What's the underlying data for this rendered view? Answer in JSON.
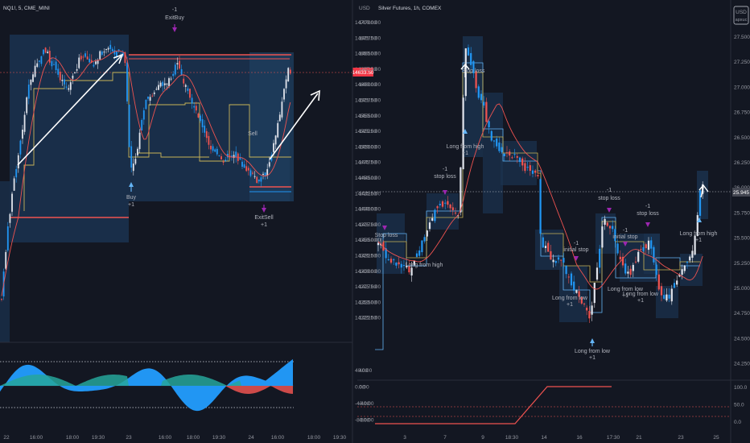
{
  "left_panel": {
    "title": "NQ1!, 5, CME_MINI",
    "price_label": "14633.50",
    "price_label_color": "#f23645",
    "y_ticks": [
      "14700.00",
      "14675.00",
      "14650.00",
      "14625.00",
      "14600.00",
      "14575.00",
      "14550.00",
      "14525.00",
      "14500.00",
      "14475.00",
      "14450.00",
      "14425.00",
      "14400.00",
      "14375.00",
      "14350.00",
      "14325.00",
      "14300.00",
      "14275.00",
      "14250.00",
      "14225.00"
    ],
    "osc_ticks": [
      "40.00",
      "0.00",
      "-40.00",
      "-80.00"
    ],
    "x_ticks": [
      "22",
      "16:00",
      "18:00",
      "19:30",
      "23",
      "16:00",
      "18:00",
      "19:30",
      "24",
      "16:00",
      "18:00",
      "19:30"
    ],
    "annotations": {
      "exit_buy": [
        "-1",
        "ExitBuy"
      ],
      "buy": [
        "Buy",
        "+1"
      ],
      "sell": "Sell",
      "exit_sell": [
        "ExitSell",
        "+1"
      ]
    }
  },
  "right_panel": {
    "title": "Silver Futures, 1h, COMEX",
    "currency": "USD",
    "badge": [
      "USD",
      "apxuc"
    ],
    "price_label": "25.945",
    "y_ticks": [
      "27.500",
      "27.250",
      "27.000",
      "26.750",
      "26.500",
      "26.250",
      "26.000",
      "25.750",
      "25.500",
      "25.250",
      "25.000",
      "24.750",
      "24.500",
      "24.250"
    ],
    "osc_ticks": [
      "100.0",
      "50.0",
      "0.0"
    ],
    "x_ticks": [
      "3",
      "7",
      "9",
      "18:30",
      "14",
      "16",
      "17:30",
      "21",
      "23",
      "25"
    ],
    "annotations": {
      "stop_loss_top": "Stop loss",
      "long_high_1": [
        "Long from high",
        "+1"
      ],
      "stop_1": [
        "-1",
        "stop loss"
      ],
      "stop_2": "Stop loss",
      "long_high_2": "Long from high",
      "initial_stop_1": [
        "-1",
        "initial stop"
      ],
      "long_low_1": [
        "Long from low",
        "+1"
      ],
      "long_low_2": [
        "Long from low",
        "+1"
      ],
      "stop_3": [
        "-1",
        "stop loss"
      ],
      "initial_stop_2": [
        "-1",
        "initial stop"
      ],
      "long_low_3": [
        "Long from low",
        "+1"
      ],
      "stop_4": [
        "-1",
        "stop loss"
      ],
      "long_low_4": [
        "Long from low",
        "+1"
      ],
      "long_high_3": [
        "Long from high",
        "+1"
      ]
    }
  },
  "colors": {
    "background": "#131722",
    "box": "#1c3a58",
    "up": "#e0e3eb",
    "down": "#2196f3",
    "bear": "#ef5350",
    "ma": "#ef5350",
    "step": "#c9b458",
    "arrow": "#ffffff",
    "marker": "#9c27b0",
    "osc_blue": "#2196f3",
    "osc_green": "#26a69a",
    "osc_red": "#ef5350"
  }
}
